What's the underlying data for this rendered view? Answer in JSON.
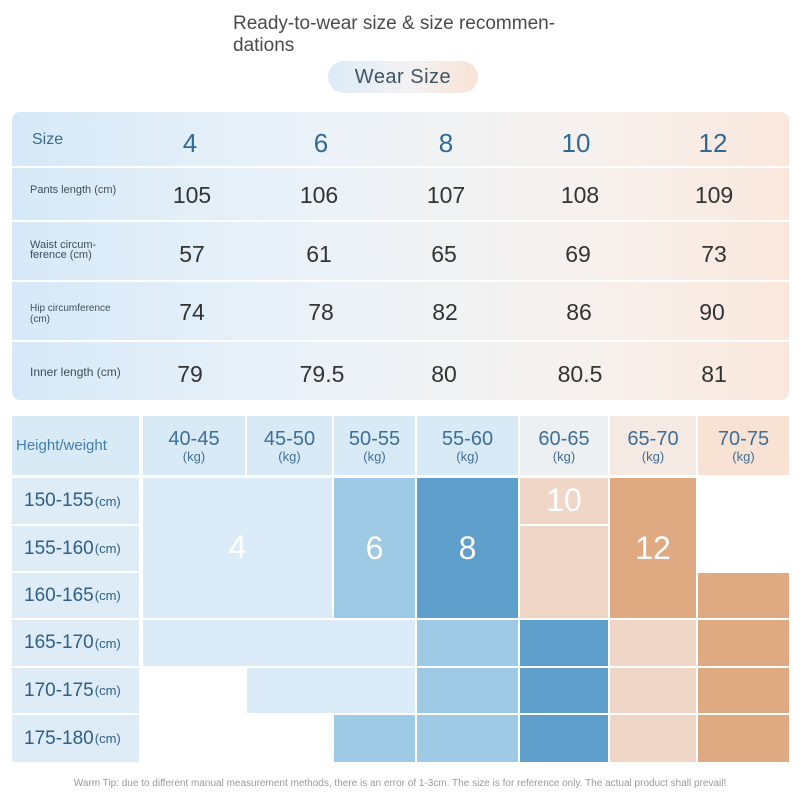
{
  "title": "Ready-to-wear size & size recommen-dations",
  "title_line1": "Ready-to-wear size & size recommen-",
  "title_line2": "dations",
  "badge": "Wear  Size",
  "size_table": {
    "header_label": "Size",
    "sizes": [
      "4",
      "6",
      "8",
      "10",
      "12"
    ],
    "rows": [
      {
        "label_lines": [
          "Pants length (cm)"
        ],
        "values": [
          "105",
          "106",
          "107",
          "108",
          "109"
        ]
      },
      {
        "label_lines": [
          "Waist circum-",
          "ference (cm)"
        ],
        "values": [
          "57",
          "61",
          "65",
          "69",
          "73"
        ]
      },
      {
        "label_lines": [
          "Hip circumference",
          "(cm)"
        ],
        "values": [
          "74",
          "78",
          "82",
          "86",
          "90"
        ]
      },
      {
        "label_lines": [
          "Inner length (cm)"
        ],
        "values": [
          "79",
          "79.5",
          "80",
          "80.5",
          "81"
        ]
      }
    ]
  },
  "fit_grid": {
    "corner_label": "Height/weight",
    "weight_unit": "(kg)",
    "height_unit": "(cm)",
    "weights": [
      "40-45",
      "45-50",
      "50-55",
      "55-60",
      "60-65",
      "65-70",
      "70-75"
    ],
    "heights": [
      "150-155",
      "155-160",
      "160-165",
      "165-170",
      "170-175",
      "175-180"
    ],
    "size_labels": [
      "4",
      "6",
      "8",
      "10",
      "12"
    ],
    "colors": {
      "size_4": "#dcebf8",
      "size_6": "#9fcae6",
      "size_8": "#5f9fcb",
      "size_10": "#f0d6c6",
      "size_12": "#dfa981"
    }
  },
  "tip": "Warm Tip: due to different manual measurement methods, there is an error of 1-3cm. The size is for reference only. The actual product shall prevail!"
}
